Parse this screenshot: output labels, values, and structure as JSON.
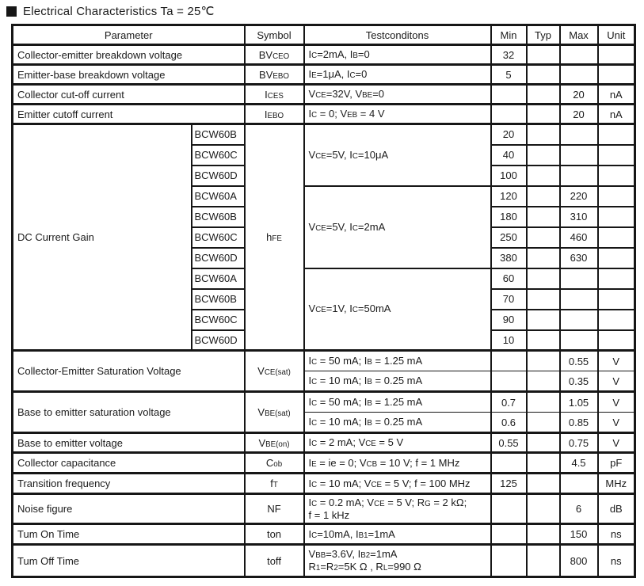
{
  "title": "Electrical Characteristics Ta = 25℃",
  "table": {
    "headers": {
      "parameter": "Parameter",
      "symbol": "Symbol",
      "conditions": "Testconditons",
      "min": "Min",
      "typ": "Typ",
      "max": "Max",
      "unit": "Unit"
    },
    "rows_top": [
      {
        "parameter": "Collector-emitter breakdown voltage",
        "symbol": "BV~CEO~",
        "conditions": "I~C~=2mA, I~B~=0",
        "min": "32",
        "typ": "",
        "max": "",
        "unit": ""
      },
      {
        "parameter": "Emitter-base breakdown voltage",
        "symbol": "BV~EBO~",
        "conditions": "I~E~=1μA, I~C~=0",
        "min": "5",
        "typ": "",
        "max": "",
        "unit": ""
      },
      {
        "parameter": "Collector cut-off current",
        "symbol": "I~CES~",
        "conditions": "V~CE~=32V, V~BE~=0",
        "min": "",
        "typ": "",
        "max": "20",
        "unit": "nA"
      },
      {
        "parameter": "Emitter cutoff current",
        "symbol": "I~EBO~",
        "conditions": "I~C~ = 0; V~EB~ = 4 V",
        "min": "",
        "typ": "",
        "max": "20",
        "unit": "nA"
      }
    ],
    "gain": {
      "parameter": "DC Current Gain",
      "symbol": "h~FE~",
      "groups": [
        {
          "conditions": "V~CE~=5V, I~C~=10μA",
          "entries": [
            {
              "model": "BCW60B",
              "min": "20",
              "typ": "",
              "max": "",
              "unit": ""
            },
            {
              "model": "BCW60C",
              "min": "40",
              "typ": "",
              "max": "",
              "unit": ""
            },
            {
              "model": "BCW60D",
              "min": "100",
              "typ": "",
              "max": "",
              "unit": ""
            }
          ]
        },
        {
          "conditions": "V~CE~=5V, I~C~=2mA",
          "entries": [
            {
              "model": "BCW60A",
              "min": "120",
              "typ": "",
              "max": "220",
              "unit": ""
            },
            {
              "model": "BCW60B",
              "min": "180",
              "typ": "",
              "max": "310",
              "unit": ""
            },
            {
              "model": "BCW60C",
              "min": "250",
              "typ": "",
              "max": "460",
              "unit": ""
            },
            {
              "model": "BCW60D",
              "min": "380",
              "typ": "",
              "max": "630",
              "unit": ""
            }
          ]
        },
        {
          "conditions": "V~CE~=1V, I~C~=50mA",
          "entries": [
            {
              "model": "BCW60A",
              "min": "60",
              "typ": "",
              "max": "",
              "unit": ""
            },
            {
              "model": "BCW60B",
              "min": "70",
              "typ": "",
              "max": "",
              "unit": ""
            },
            {
              "model": "BCW60C",
              "min": "90",
              "typ": "",
              "max": "",
              "unit": ""
            },
            {
              "model": "BCW60D",
              "min": "10",
              "typ": "",
              "max": "",
              "unit": ""
            }
          ]
        }
      ]
    },
    "sat_groups": [
      {
        "parameter": "Collector-Emitter Saturation Voltage",
        "symbol": "V~CE(sat)~",
        "rows": [
          {
            "conditions": "I~C~ = 50 mA; I~B~ = 1.25 mA",
            "min": "",
            "typ": "",
            "max": "0.55",
            "unit": "V"
          },
          {
            "conditions": "I~C~ = 10 mA; I~B~ = 0.25 mA",
            "min": "",
            "typ": "",
            "max": "0.35",
            "unit": "V"
          }
        ]
      },
      {
        "parameter": "Base to emitter saturation voltage",
        "symbol": "V~BE(sat)~",
        "rows": [
          {
            "conditions": "I~C~ = 50 mA; I~B~ = 1.25 mA",
            "min": "0.7",
            "typ": "",
            "max": "1.05",
            "unit": "V"
          },
          {
            "conditions": "I~C~ = 10 mA; I~B~ = 0.25 mA",
            "min": "0.6",
            "typ": "",
            "max": "0.85",
            "unit": "V"
          }
        ]
      }
    ],
    "rows_bottom": [
      {
        "parameter": "Base to emitter voltage",
        "symbol": "V~BE(on)~",
        "conditions": "I~C~ = 2 mA; V~CE~ = 5 V",
        "min": "0.55",
        "typ": "",
        "max": "0.75",
        "unit": "V"
      },
      {
        "parameter": "Collector capacitance",
        "symbol": "C~ob~",
        "conditions": "I~E~ = ie = 0; V~CB~ = 10 V; f = 1 MHz",
        "min": "",
        "typ": "",
        "max": "4.5",
        "unit": "pF"
      },
      {
        "parameter": "Transition frequency",
        "symbol": "f~T~",
        "conditions": "I~C~ = 10 mA; V~CE~ = 5 V; f = 100 MHz",
        "min": "125",
        "typ": "",
        "max": "",
        "unit": "MHz"
      },
      {
        "parameter": "Noise figure",
        "symbol": "NF",
        "conditions": "I~C~ = 0.2 mA; V~CE~ = 5 V; R~G~ = 2 kΩ;\nf = 1 kHz",
        "min": "",
        "typ": "",
        "max": "6",
        "unit": "dB"
      },
      {
        "parameter": "Tum On Time",
        "symbol": "ton",
        "conditions": "I~C~=10mA, I~B1~=1mA",
        "min": "",
        "typ": "",
        "max": "150",
        "unit": "ns"
      },
      {
        "parameter": "Tum Off Time",
        "symbol": "toff",
        "conditions": "V~BB~=3.6V, I~B2~=1mA\nR~1~=R~2~=5K Ω , R~L~=990 Ω",
        "min": "",
        "typ": "",
        "max": "800",
        "unit": "ns"
      }
    ]
  }
}
